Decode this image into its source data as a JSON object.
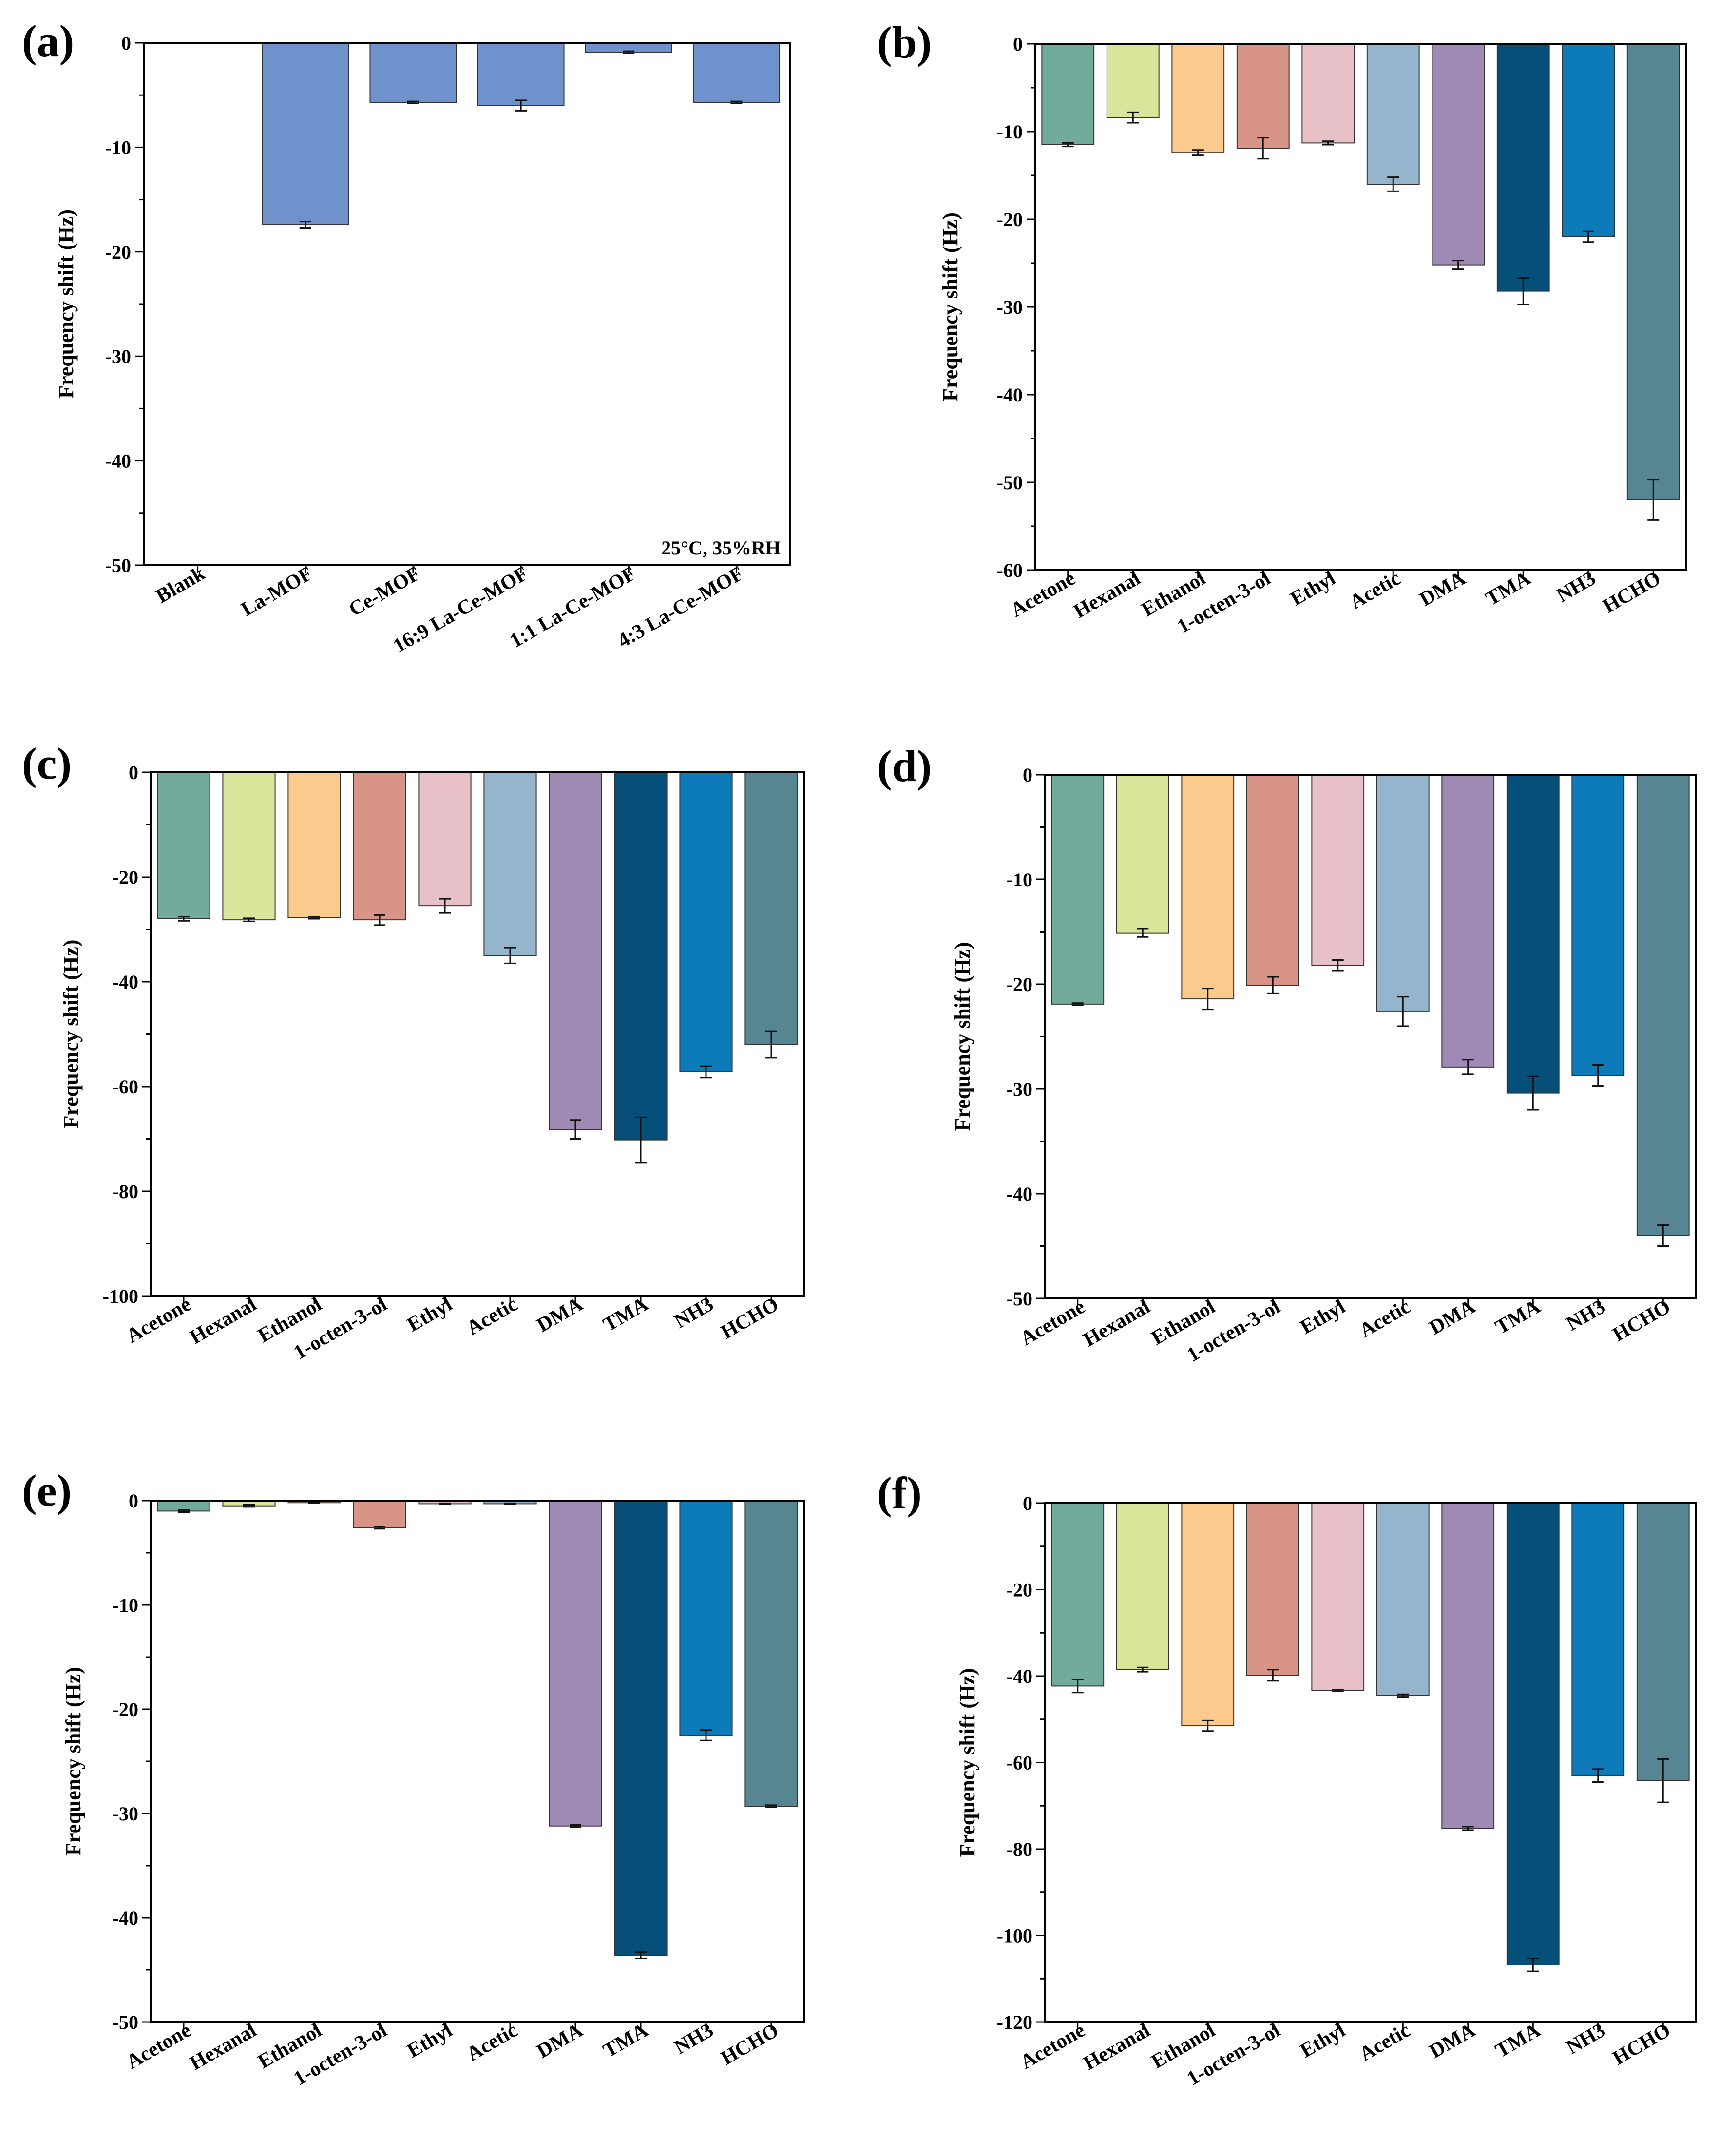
{
  "chart_data": [
    {
      "panel_label": "(a)",
      "type": "bar",
      "ylabel": "Frequency shift (Hz)",
      "ylim": [
        -50,
        0
      ],
      "yticks": [
        0,
        -10,
        -20,
        -30,
        -40,
        -50
      ],
      "annotation": "25°C, 35%RH",
      "categories": [
        "Blank",
        "La-MOF",
        "Ce-MOF",
        "16:9 La-Ce-MOF",
        "1:1 La-Ce-MOF",
        "4:3 La-Ce-MOF"
      ],
      "values": [
        0,
        -17.4,
        -5.7,
        -6.0,
        -0.9,
        -5.7
      ],
      "errors": [
        0,
        0.3,
        0.1,
        0.5,
        0.1,
        0.1
      ],
      "colors": [
        "#7092cc",
        "#7092cc",
        "#7092cc",
        "#7092cc",
        "#7092cc",
        "#7092cc"
      ]
    },
    {
      "panel_label": "(b)",
      "type": "bar",
      "ylabel": "Frequency shift (Hz)",
      "ylim": [
        -60,
        0
      ],
      "yticks": [
        0,
        -10,
        -20,
        -30,
        -40,
        -50,
        -60
      ],
      "categories": [
        "Acetone",
        "Hexanal",
        "Ethanol",
        "1-octen-3-ol",
        "Ethyl",
        "Acetic",
        "DMA",
        "TMA",
        "NH3",
        "HCHO"
      ],
      "values": [
        -11.5,
        -8.4,
        -12.4,
        -11.9,
        -11.3,
        -16.0,
        -25.2,
        -28.2,
        -22.0,
        -52.0
      ],
      "errors": [
        0.2,
        0.6,
        0.3,
        1.2,
        0.2,
        0.8,
        0.5,
        1.5,
        0.6,
        2.3
      ],
      "colors": [
        "#72ab9c",
        "#d8e59b",
        "#fbca8c",
        "#d99488",
        "#e7c1c7",
        "#95b5cc",
        "#9f8ab6",
        "#064f78",
        "#0d7bba",
        "#588592"
      ]
    },
    {
      "panel_label": "(c)",
      "type": "bar",
      "ylabel": "Frequency shift (Hz)",
      "ylim": [
        -100,
        0
      ],
      "yticks": [
        0,
        -20,
        -40,
        -60,
        -80,
        -100
      ],
      "categories": [
        "Acetone",
        "Hexanal",
        "Ethanol",
        "1-octen-3-ol",
        "Ethyl",
        "Acetic",
        "DMA",
        "TMA",
        "NH3",
        "HCHO"
      ],
      "values": [
        -28.0,
        -28.2,
        -27.8,
        -28.2,
        -25.5,
        -35.0,
        -68.2,
        -70.2,
        -57.2,
        -52.0
      ],
      "errors": [
        0.4,
        0.3,
        0.2,
        1.0,
        1.3,
        1.5,
        1.8,
        4.3,
        1.1,
        2.5
      ],
      "colors": [
        "#72ab9c",
        "#d8e59b",
        "#fbca8c",
        "#d99488",
        "#e7c1c7",
        "#95b5cc",
        "#9f8ab6",
        "#064f78",
        "#0d7bba",
        "#588592"
      ]
    },
    {
      "panel_label": "(d)",
      "type": "bar",
      "ylabel": "Frequency shift (Hz)",
      "ylim": [
        -50,
        0
      ],
      "yticks": [
        0,
        -10,
        -20,
        -30,
        -40,
        -50
      ],
      "categories": [
        "Acetone",
        "Hexanal",
        "Ethanol",
        "1-octen-3-ol",
        "Ethyl",
        "Acetic",
        "DMA",
        "TMA",
        "NH3",
        "HCHO"
      ],
      "values": [
        -21.9,
        -15.1,
        -21.4,
        -20.1,
        -18.2,
        -22.6,
        -27.9,
        -30.4,
        -28.7,
        -44.0
      ],
      "errors": [
        0.1,
        0.4,
        1.0,
        0.8,
        0.5,
        1.4,
        0.7,
        1.6,
        1.0,
        1.0
      ],
      "colors": [
        "#72ab9c",
        "#d8e59b",
        "#fbca8c",
        "#d99488",
        "#e7c1c7",
        "#95b5cc",
        "#9f8ab6",
        "#064f78",
        "#0d7bba",
        "#588592"
      ]
    },
    {
      "panel_label": "(e)",
      "type": "bar",
      "ylabel": "Frequency shift (Hz)",
      "ylim": [
        -50,
        0
      ],
      "yticks": [
        0,
        -10,
        -20,
        -30,
        -40,
        -50
      ],
      "categories": [
        "Acetone",
        "Hexanal",
        "Ethanol",
        "1-octen-3-ol",
        "Ethyl",
        "Acetic",
        "DMA",
        "TMA",
        "NH3",
        "HCHO"
      ],
      "values": [
        -1.0,
        -0.5,
        -0.2,
        -2.6,
        -0.3,
        -0.3,
        -31.2,
        -43.6,
        -22.5,
        -29.3
      ],
      "errors": [
        0.1,
        0.1,
        0.05,
        0.1,
        0.05,
        0.05,
        0.1,
        0.3,
        0.5,
        0.1
      ],
      "colors": [
        "#72ab9c",
        "#d8e59b",
        "#fbca8c",
        "#d99488",
        "#e7c1c7",
        "#95b5cc",
        "#9f8ab6",
        "#064f78",
        "#0d7bba",
        "#588592"
      ]
    },
    {
      "panel_label": "(f)",
      "type": "bar",
      "ylabel": "Frequency shift (Hz)",
      "ylim": [
        -120,
        0
      ],
      "yticks": [
        0,
        -20,
        -40,
        -60,
        -80,
        -100,
        -120
      ],
      "categories": [
        "Acetone",
        "Hexanal",
        "Ethanol",
        "1-octen-3-ol",
        "Ethyl",
        "Acetic",
        "DMA",
        "TMA",
        "NH3",
        "HCHO"
      ],
      "values": [
        -42.3,
        -38.5,
        -51.5,
        -39.8,
        -43.3,
        -44.5,
        -75.2,
        -106.8,
        -63.0,
        -64.2
      ],
      "errors": [
        1.5,
        0.5,
        1.2,
        1.3,
        0.2,
        0.3,
        0.4,
        1.5,
        1.5,
        5.0
      ],
      "colors": [
        "#72ab9c",
        "#d8e59b",
        "#fbca8c",
        "#d99488",
        "#e7c1c7",
        "#95b5cc",
        "#9f8ab6",
        "#064f78",
        "#0d7bba",
        "#588592"
      ]
    }
  ]
}
